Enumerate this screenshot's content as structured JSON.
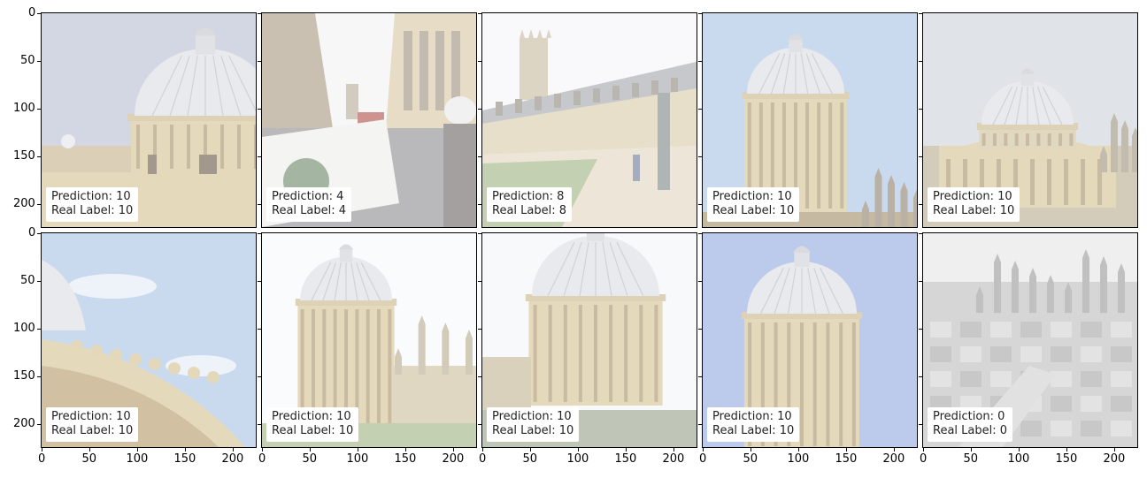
{
  "axes": {
    "y_ticks": [
      "0",
      "50",
      "100",
      "150",
      "200"
    ],
    "x_ticks": [
      "0",
      "50",
      "100",
      "150",
      "200"
    ]
  },
  "panels": [
    {
      "scene": "dome-close-sky",
      "prediction": "Prediction: 10",
      "real": "Real Label: 10"
    },
    {
      "scene": "street-cup",
      "prediction": "Prediction: 4",
      "real": "Real Label: 4"
    },
    {
      "scene": "college-lawn",
      "prediction": "Prediction: 8",
      "real": "Real Label: 8"
    },
    {
      "scene": "rotunda-blue",
      "prediction": "Prediction: 10",
      "real": "Real Label: 10"
    },
    {
      "scene": "dome-aerial",
      "prediction": "Prediction: 10",
      "real": "Real Label: 10"
    },
    {
      "scene": "dome-edge-clouds",
      "prediction": "Prediction: 10",
      "real": "Real Label: 10"
    },
    {
      "scene": "rotunda-white",
      "prediction": "Prediction: 10",
      "real": "Real Label: 10"
    },
    {
      "scene": "rotunda-wide",
      "prediction": "Prediction: 10",
      "real": "Real Label: 10"
    },
    {
      "scene": "rotunda-deepblue",
      "prediction": "Prediction: 10",
      "real": "Real Label: 10"
    },
    {
      "scene": "city-aerial-gray",
      "prediction": "Prediction: 0",
      "real": "Real Label: 0"
    }
  ],
  "colors": {
    "sky_gray": "#b9bfd2",
    "sky_blue": "#a9c3e6",
    "sky_deep": "#93acdf",
    "stone": "#d6c293",
    "dome": "#dcdde2",
    "grass": "#9fb583",
    "gray_city": "#bdbdbd"
  }
}
